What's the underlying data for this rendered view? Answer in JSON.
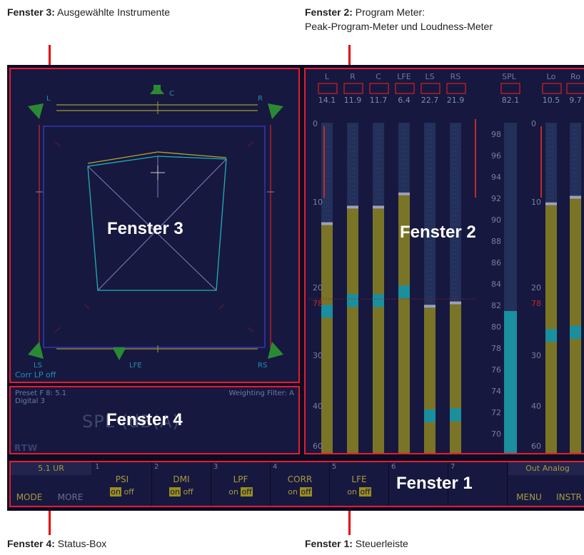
{
  "callouts": {
    "win3": {
      "bold": "Fenster 3:",
      "text": " Ausgewählte Instrumente"
    },
    "win2": {
      "bold": "Fenster 2:",
      "text": " Program Meter:",
      "line2": "Peak-Program-Meter und Loudness-Meter"
    },
    "win4": {
      "bold": "Fenster 4:",
      "text": " Status-Box"
    },
    "win1": {
      "bold": "Fenster 1:",
      "text": " Steuerleiste"
    }
  },
  "big_labels": {
    "win3": "Fenster 3",
    "win2": "Fenster 2",
    "win4": "Fenster 4",
    "win1": "Fenster 1"
  },
  "surround": {
    "speakers": [
      "L",
      "C",
      "R",
      "LS",
      "LFE",
      "RS"
    ],
    "status": "Corr LP off"
  },
  "status_box": {
    "preset": "Preset F 8: 5.1",
    "input": "Digital 3",
    "weighting": "Weighting Filter: A",
    "spl_text": "SPL (dB(A)",
    "logo": "RTW"
  },
  "meter": {
    "channels": [
      {
        "name": "L",
        "peak": "14.1",
        "level": 0.69
      },
      {
        "name": "R",
        "peak": "11.9",
        "level": 0.74
      },
      {
        "name": "C",
        "peak": "11.7",
        "level": 0.74
      },
      {
        "name": "LFE",
        "peak": "6.4",
        "level": 0.78
      },
      {
        "name": "LS",
        "peak": "22.7",
        "level": 0.44
      },
      {
        "name": "RS",
        "peak": "21.9",
        "level": 0.45
      }
    ],
    "spl": {
      "name": "SPL",
      "value": "82.1",
      "level": 0.43
    },
    "lo_ro": [
      {
        "name": "Lo",
        "peak": "10.5",
        "level": 0.75
      },
      {
        "name": "Ro",
        "peak": "9.7",
        "level": 0.77
      }
    ],
    "scale_left": [
      "0",
      "10",
      "20",
      "30",
      "40",
      "60"
    ],
    "scale_spl": [
      "98",
      "96",
      "94",
      "92",
      "90",
      "88",
      "86",
      "84",
      "82",
      "80",
      "78",
      "76",
      "74",
      "72",
      "70"
    ],
    "ref_mark": "78",
    "colors": {
      "bar": "#7a7426",
      "cyan": "#1a8f9e",
      "peak_box": "#d62020",
      "frame": "#e51b33"
    }
  },
  "control_bar": {
    "format": "5.1 UR",
    "mode": "MODE",
    "more": "MORE",
    "slots": [
      {
        "num": "1",
        "name": "PSI",
        "on": "on",
        "off": "off",
        "active": "on"
      },
      {
        "num": "2",
        "name": "DMI",
        "on": "on",
        "off": "off",
        "active": "on"
      },
      {
        "num": "3",
        "name": "LPF",
        "on": "on",
        "off": "off",
        "active": "off"
      },
      {
        "num": "4",
        "name": "CORR",
        "on": "on",
        "off": "off",
        "active": "off"
      },
      {
        "num": "5",
        "name": "LFE",
        "on": "on",
        "off": "off",
        "active": "off"
      },
      {
        "num": "6",
        "name": "",
        "on": "",
        "off": "",
        "active": ""
      },
      {
        "num": "7",
        "name": "",
        "on": "",
        "off": "",
        "active": ""
      }
    ],
    "output": "Out Analog",
    "menu": "MENU",
    "instr": "INSTR"
  }
}
